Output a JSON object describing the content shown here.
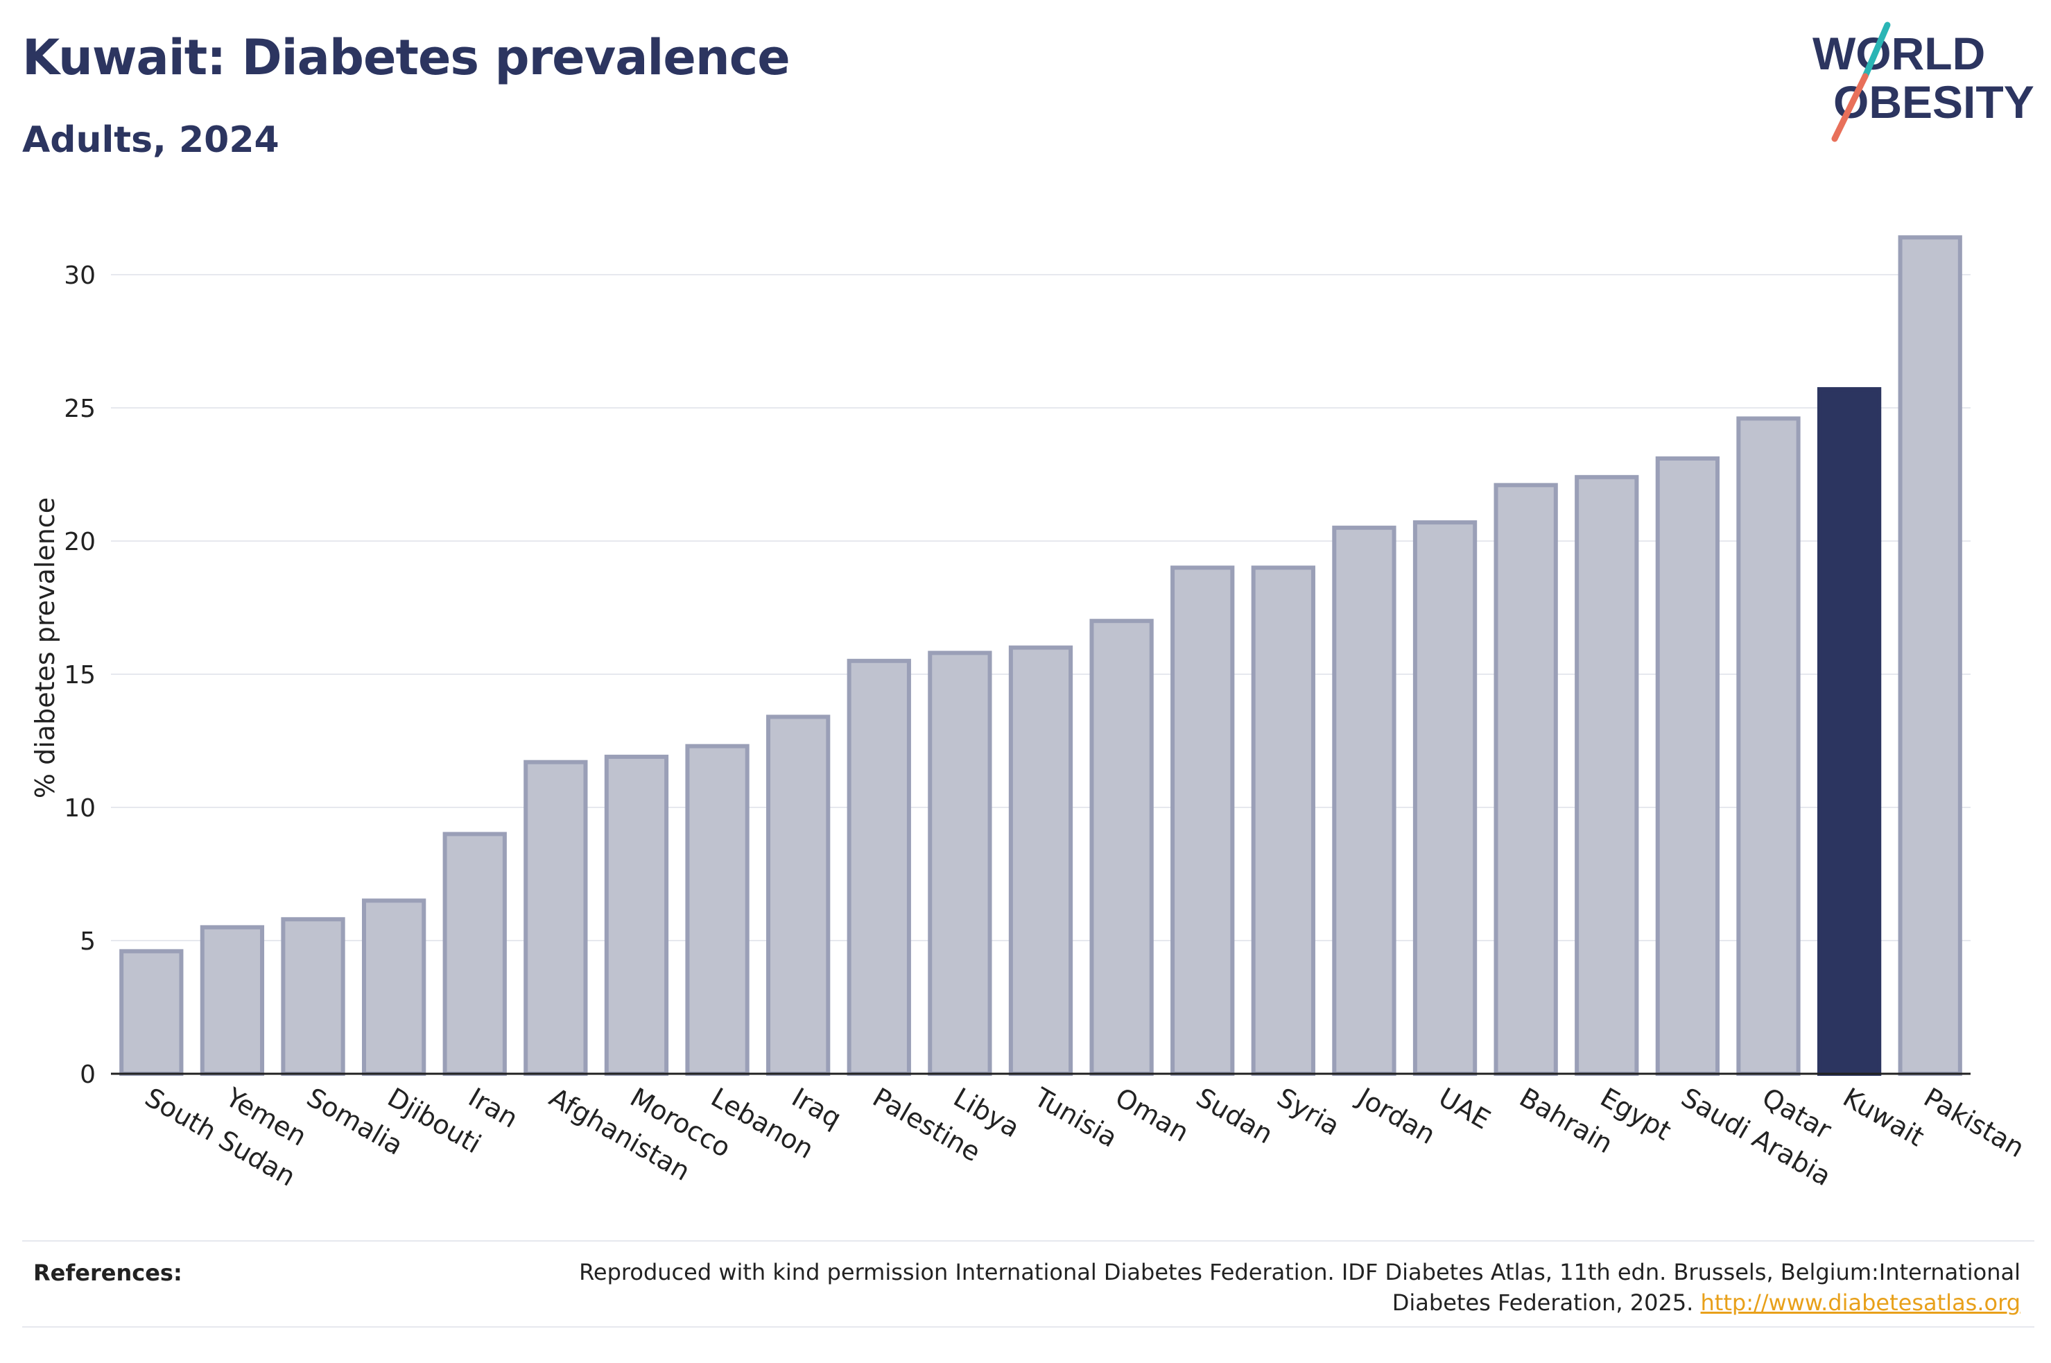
{
  "header": {
    "title": "Kuwait: Diabetes prevalence",
    "subtitle": "Adults, 2024"
  },
  "logo": {
    "line1": "WORLD",
    "line2": "OBESITY",
    "accent_colors": [
      "#2ab5b5",
      "#e8705a"
    ]
  },
  "chart_data": {
    "type": "bar",
    "categories": [
      "South Sudan",
      "Yemen",
      "Somalia",
      "Djibouti",
      "Iran",
      "Afghanistan",
      "Morocco",
      "Lebanon",
      "Iraq",
      "Palestine",
      "Libya",
      "Tunisia",
      "Oman",
      "Sudan",
      "Syria",
      "Jordan",
      "UAE",
      "Bahrain",
      "Egypt",
      "Saudi Arabia",
      "Qatar",
      "Kuwait",
      "Pakistan"
    ],
    "values": [
      4.6,
      5.5,
      5.8,
      6.5,
      9.0,
      11.7,
      11.9,
      12.3,
      13.4,
      15.5,
      15.8,
      16.0,
      17.0,
      19.0,
      19.0,
      20.5,
      20.7,
      22.1,
      22.4,
      23.1,
      24.6,
      25.7,
      31.4
    ],
    "highlight": "Kuwait",
    "ylabel": "% diabetes prevalence",
    "xlabel": "",
    "ylim": [
      0,
      32.5
    ],
    "yticks": [
      0,
      5,
      10,
      15,
      20,
      25,
      30
    ],
    "grid": true,
    "colors": {
      "bar": "#bfc2cf",
      "bar_border": "#9a9fb7",
      "highlight": "#2c3560",
      "grid": "#e6e8ee",
      "axis": "#222222"
    }
  },
  "references": {
    "label": "References:",
    "text": "Reproduced with kind permission International Diabetes Federation. IDF Diabetes Atlas, 11th edn. Brussels, Belgium:International Diabetes Federation, 2025.",
    "link": "http://www.diabetesatlas.org"
  }
}
